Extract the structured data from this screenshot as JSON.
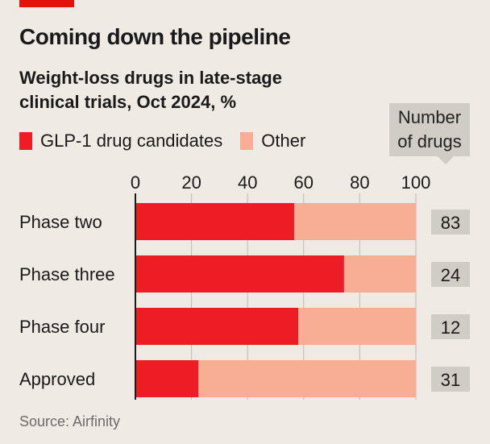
{
  "title": "Coming down the pipeline",
  "subtitle": "Weight-loss drugs in late-stage clinical trials, Oct 2024, %",
  "source": "Source: Airfinity",
  "count_header": "Number of drugs",
  "colors": {
    "accent": "#e3120b",
    "glp1": "#ee1c25",
    "other": "#f8ae95",
    "count_box": "#d0ccc6",
    "background": "#efeae3"
  },
  "chart_data": {
    "type": "bar",
    "orientation": "horizontal",
    "stacked": true,
    "categories": [
      "Phase two",
      "Phase three",
      "Phase four",
      "Approved"
    ],
    "series": [
      {
        "name": "GLP-1 drug candidates",
        "values": [
          56.6,
          74.4,
          58.1,
          22.5
        ]
      },
      {
        "name": "Other",
        "values": [
          43.4,
          25.6,
          41.9,
          77.5
        ]
      }
    ],
    "counts": [
      "83",
      "24",
      "12",
      "31"
    ],
    "xlim": [
      0,
      100
    ],
    "xticks": [
      "0",
      "20",
      "40",
      "60",
      "80",
      "100"
    ],
    "grid": true,
    "legend": "top-left"
  }
}
